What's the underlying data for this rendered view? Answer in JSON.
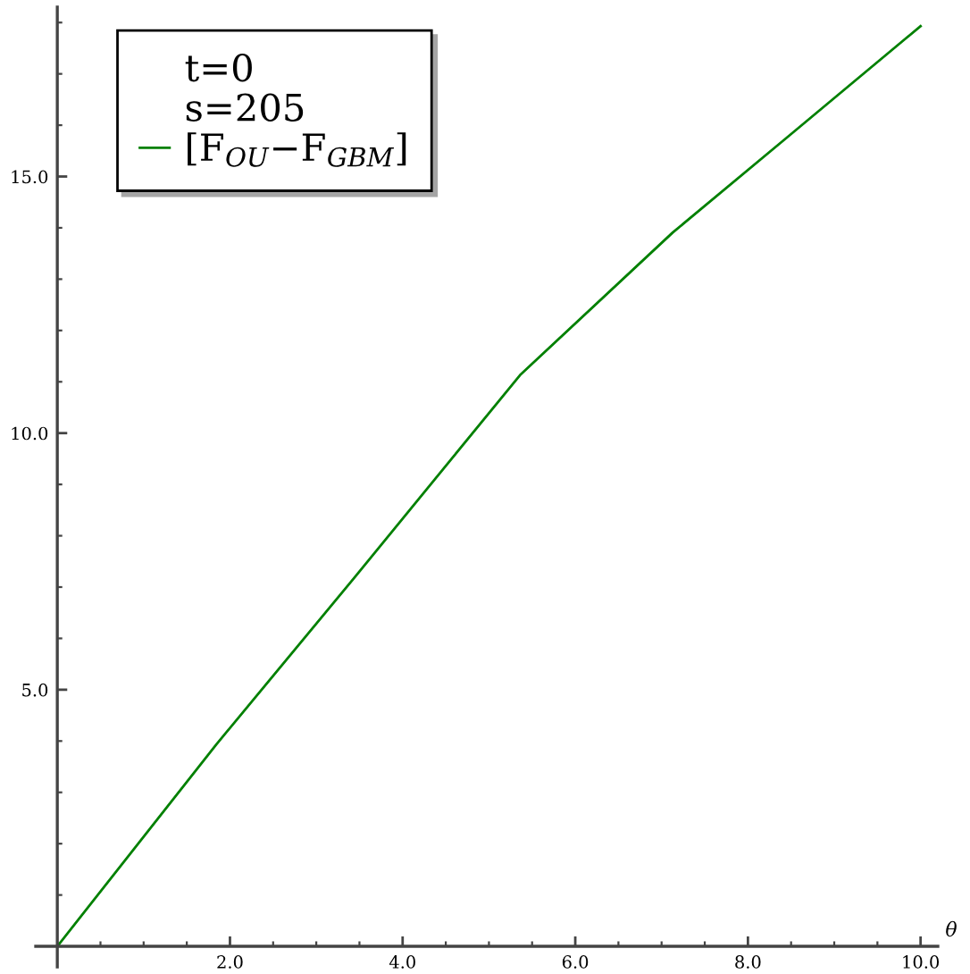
{
  "chart_data": {
    "type": "line",
    "xlabel": "θ",
    "annotations": [
      "t=0",
      "s=205"
    ],
    "x": [
      0,
      1.84,
      3.44,
      5.36,
      7.13,
      8.46,
      10
    ],
    "series": [
      {
        "name": "[F$_{OU}$−F$_{GBM}$]",
        "color": "#008000",
        "values": [
          0,
          3.93,
          7.18,
          11.13,
          13.91,
          15.77,
          17.93
        ]
      }
    ],
    "xlim": [
      -0.25,
      10.2
    ],
    "ylim": [
      -0.4,
      18.3
    ],
    "xticks": [
      {
        "value": 2,
        "label": "2.0"
      },
      {
        "value": 4,
        "label": "4.0"
      },
      {
        "value": 6,
        "label": "6.0"
      },
      {
        "value": 8,
        "label": "8.0"
      },
      {
        "value": 10,
        "label": "10.0"
      }
    ],
    "yticks": [
      {
        "value": 5,
        "label": "5.0"
      },
      {
        "value": 10,
        "label": "10.0"
      },
      {
        "value": 15,
        "label": "15.0"
      }
    ],
    "grid": false,
    "legend": "top left",
    "marker": "none",
    "line_style": "solid"
  }
}
